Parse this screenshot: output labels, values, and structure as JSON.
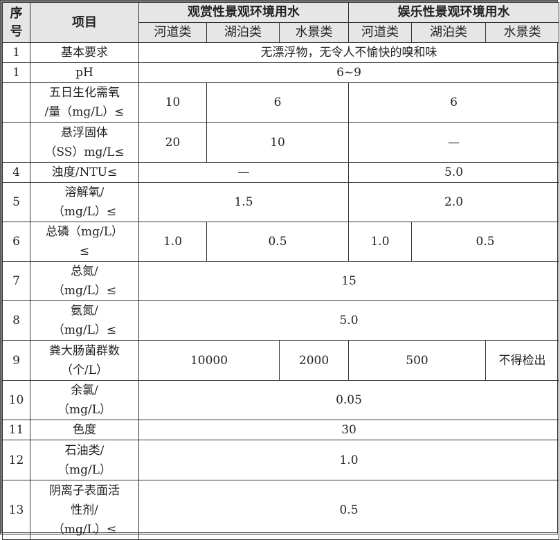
{
  "header": {
    "number": "序\n号",
    "item": "项目",
    "groups": [
      "观赏性景观环境用水",
      "娱乐性景观环境用水"
    ],
    "subcols": [
      "河道类",
      "湖泊类",
      "水景类",
      "河道类",
      "湖泊类",
      "水景类"
    ]
  },
  "rows": [
    {
      "no": "1",
      "item": "基本要求",
      "cells": [
        {
          "text": "无漂浮物，无令人不愉快的嗅和味",
          "span": 6
        }
      ]
    },
    {
      "no": "1",
      "item": "pH",
      "cells": [
        {
          "text": "6~9",
          "span": 6
        }
      ]
    },
    {
      "no": "",
      "item": "五日生化需氧\n/量（mg/L）≤",
      "cells": [
        {
          "text": "10",
          "span": 1
        },
        {
          "text": "6",
          "span": 2
        },
        {
          "text": "6",
          "span": 3
        }
      ]
    },
    {
      "no": "",
      "item": "悬浮固体\n（SS）mg/L≤",
      "cells": [
        {
          "text": "20",
          "span": 1
        },
        {
          "text": "10",
          "span": 2
        },
        {
          "text": "—",
          "span": 3
        }
      ]
    },
    {
      "no": "4",
      "item": "浊度/NTU≤",
      "cells": [
        {
          "text": "—",
          "span": 3
        },
        {
          "text": "5.0",
          "span": 3
        }
      ]
    },
    {
      "no": "5",
      "item": "溶解氧/\n（mg/L）≤",
      "cells": [
        {
          "text": "1.5",
          "span": 3
        },
        {
          "text": "2.0",
          "span": 3
        }
      ]
    },
    {
      "no": "6",
      "item": "总磷（mg/L）\n≤",
      "cells": [
        {
          "text": "1.0",
          "span": 1
        },
        {
          "text": "0.5",
          "span": 2
        },
        {
          "text": "1.0",
          "span": 1
        },
        {
          "text": "0.5",
          "span": 2
        }
      ]
    },
    {
      "no": "7",
      "item": "总氮/\n（mg/L）≤",
      "cells": [
        {
          "text": "15",
          "span": 6
        }
      ]
    },
    {
      "no": "8",
      "item": "氨氮/\n（mg/L）≤",
      "cells": [
        {
          "text": "5.0",
          "span": 6
        }
      ]
    },
    {
      "no": "9",
      "item": "粪大肠菌群数\n（个/L）",
      "cells": [
        {
          "text": "10000",
          "span": 2
        },
        {
          "text": "2000",
          "span": 1
        },
        {
          "text": "500",
          "span": 2
        },
        {
          "text": "不得检出",
          "span": 1
        }
      ]
    },
    {
      "no": "10",
      "item": "余氯/\n（mg/L）",
      "cells": [
        {
          "text": "0.05",
          "span": 6
        }
      ]
    },
    {
      "no": "11",
      "item": "色度",
      "cells": [
        {
          "text": "30",
          "span": 6
        }
      ]
    },
    {
      "no": "12",
      "item": "石油类/\n（mg/L）",
      "cells": [
        {
          "text": "1.0",
          "span": 6
        }
      ]
    },
    {
      "no": "13",
      "item": "阴离子表面活\n性剂/\n（mg/L）≤",
      "cells": [
        {
          "text": "0.5",
          "span": 6
        }
      ]
    }
  ]
}
